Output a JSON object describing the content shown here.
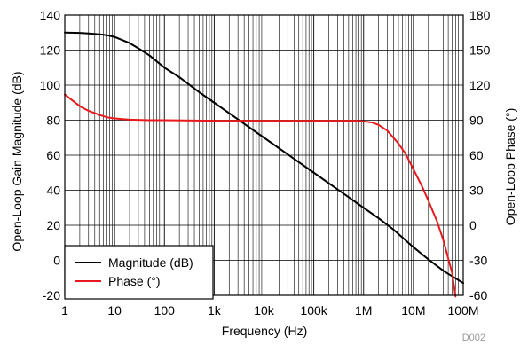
{
  "chart_data": {
    "type": "line",
    "xscale": "log",
    "xlabel": "Frequency (Hz)",
    "ylabel": "Open-Loop Gain Magnitude (dB)",
    "y2label": "Open-Loop Phase (°)",
    "xlim": [
      1,
      100000000
    ],
    "ylim": [
      -20,
      140
    ],
    "y2lim": [
      -60,
      180
    ],
    "x_tick_values": [
      1,
      10,
      100,
      1000,
      10000,
      100000,
      1000000,
      10000000,
      100000000
    ],
    "x_tick_labels": [
      "1",
      "10",
      "100",
      "1k",
      "10k",
      "100k",
      "1M",
      "10M",
      "100M"
    ],
    "y_tick_labels": [
      "-20",
      "0",
      "20",
      "40",
      "60",
      "80",
      "100",
      "120",
      "140"
    ],
    "y2_tick_labels": [
      "-60",
      "-30",
      "0",
      "30",
      "60",
      "90",
      "120",
      "150",
      "180"
    ],
    "grid": true,
    "legend_position": "bottom-left",
    "series": [
      {
        "name": "Magnitude (dB)",
        "color": "#000000",
        "axis": "left",
        "x": [
          1,
          2,
          3,
          5,
          7,
          10,
          20,
          30,
          50,
          100,
          200,
          500,
          1000,
          3000,
          10000,
          30000,
          100000,
          300000,
          1000000,
          2000000,
          4000000,
          10000000,
          20000000,
          40000000,
          100000000
        ],
        "y": [
          130,
          129.8,
          129.5,
          129,
          128.5,
          127.5,
          124,
          121,
          117,
          110,
          104.5,
          96,
          90,
          80.5,
          70,
          60.5,
          50,
          40.5,
          30,
          24,
          17.5,
          7.5,
          0.5,
          -6,
          -13
        ]
      },
      {
        "name": "Phase (°)",
        "color": "#e8191d",
        "axis": "right",
        "x": [
          1,
          2,
          3,
          5,
          7,
          10,
          20,
          50,
          100,
          1000,
          10000,
          100000,
          300000,
          700000,
          1000000,
          1500000,
          2000000,
          3000000,
          5000000,
          7000000,
          10000000,
          15000000,
          20000000,
          30000000,
          40000000,
          60000000,
          70000000
        ],
        "y": [
          112,
          102,
          98,
          94.5,
          92.5,
          91.5,
          90.5,
          90,
          90,
          89.5,
          89.5,
          89.5,
          89.5,
          89.5,
          89,
          88,
          86,
          81,
          70,
          61,
          48,
          33,
          21,
          3,
          -13,
          -41,
          -61
        ]
      }
    ]
  },
  "figure_id": "D002"
}
